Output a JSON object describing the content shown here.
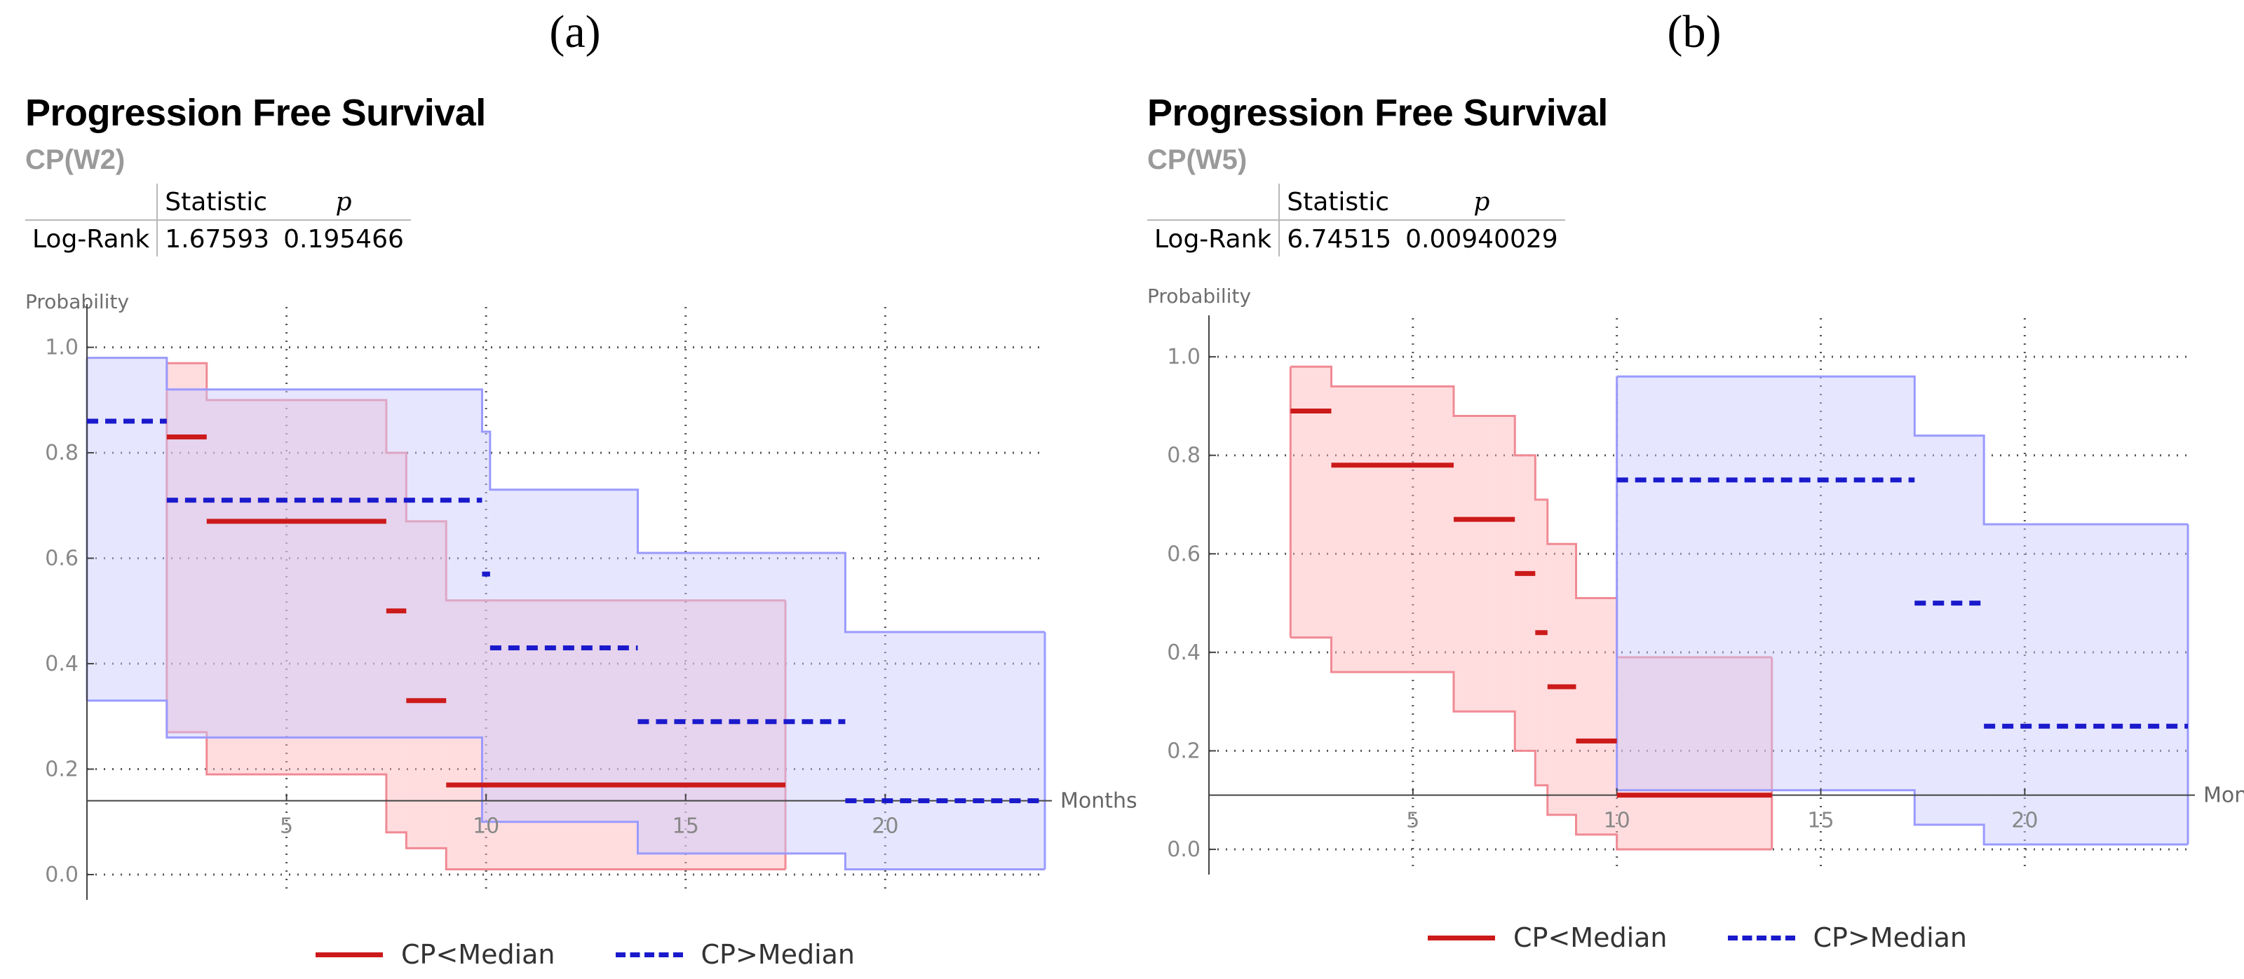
{
  "panels": [
    {
      "label": "(a)",
      "title": "Progression Free Survival",
      "subtitle": "CP(W2)",
      "stats": {
        "col_statistic": "Statistic",
        "col_p": "p",
        "row_name": "Log-Rank",
        "statistic": "1.67593",
        "p_value": "0.195466"
      }
    },
    {
      "label": "(b)",
      "title": "Progression Free Survival",
      "subtitle": "CP(W5)",
      "stats": {
        "col_statistic": "Statistic",
        "col_p": "p",
        "row_name": "Log-Rank",
        "statistic": "6.74515",
        "p_value": "0.00940029"
      }
    }
  ],
  "legend": {
    "red": "CP<Median",
    "blue": "CP>Median"
  },
  "colors": {
    "red": "#cc1a1a",
    "blue": "#1a1acc",
    "red_band": "#ffb3b8",
    "blue_band": "#c8c8ff"
  },
  "chart_data": [
    {
      "type": "line",
      "title": "Progression Free Survival",
      "subtitle": "CP(W2)",
      "xlabel": "Months",
      "ylabel": "Probability",
      "xlim": [
        0,
        24
      ],
      "ylim": [
        0,
        1.05
      ],
      "x_axis_crosses_y": 0.14,
      "x_ticks": [
        5,
        10,
        15,
        20
      ],
      "y_ticks": [
        0.0,
        0.2,
        0.4,
        0.6,
        0.8,
        1.0
      ],
      "y_tick_labels": [
        "0.0",
        "0.2",
        "0.4",
        "0.6",
        "0.8",
        "1.0"
      ],
      "x_tick_labels": [
        "5",
        "10",
        "15",
        "20"
      ],
      "grid": true,
      "legend_position": "bottom",
      "series": [
        {
          "name": "CP<Median",
          "color": "red",
          "dash": false,
          "steps": [
            [
              2.0,
              3.0,
              0.83
            ],
            [
              3.0,
              7.5,
              0.67
            ],
            [
              7.5,
              8.0,
              0.5
            ],
            [
              8.0,
              9.0,
              0.33
            ],
            [
              9.0,
              17.5,
              0.17
            ]
          ],
          "band": [
            [
              2.0,
              3.0,
              0.27,
              0.97
            ],
            [
              3.0,
              7.5,
              0.19,
              0.9
            ],
            [
              7.5,
              8.0,
              0.08,
              0.8
            ],
            [
              8.0,
              9.0,
              0.05,
              0.67
            ],
            [
              9.0,
              17.5,
              0.01,
              0.52
            ]
          ]
        },
        {
          "name": "CP>Median",
          "color": "blue",
          "dash": true,
          "steps": [
            [
              0.0,
              2.0,
              0.86
            ],
            [
              2.0,
              9.9,
              0.71
            ],
            [
              9.9,
              10.1,
              0.57
            ],
            [
              10.1,
              13.8,
              0.43
            ],
            [
              13.8,
              19.0,
              0.29
            ],
            [
              19.0,
              24.0,
              0.14
            ]
          ],
          "band": [
            [
              0.0,
              2.0,
              0.33,
              0.98
            ],
            [
              2.0,
              9.9,
              0.26,
              0.92
            ],
            [
              9.9,
              10.1,
              0.1,
              0.84
            ],
            [
              10.1,
              13.8,
              0.1,
              0.73
            ],
            [
              13.8,
              19.0,
              0.04,
              0.61
            ],
            [
              19.0,
              24.0,
              0.01,
              0.46
            ]
          ]
        }
      ]
    },
    {
      "type": "line",
      "title": "Progression Free Survival",
      "subtitle": "CP(W5)",
      "xlabel": "Months",
      "ylabel": "Probability",
      "xlim": [
        0,
        24
      ],
      "ylim": [
        0,
        1.05
      ],
      "x_axis_crosses_y": 0.11,
      "x_ticks": [
        5,
        10,
        15,
        20
      ],
      "y_ticks": [
        0.0,
        0.2,
        0.4,
        0.6,
        0.8,
        1.0
      ],
      "y_tick_labels": [
        "0.0",
        "0.2",
        "0.4",
        "0.6",
        "0.8",
        "1.0"
      ],
      "x_tick_labels": [
        "5",
        "10",
        "15",
        "20"
      ],
      "grid": true,
      "legend_position": "bottom",
      "series": [
        {
          "name": "CP<Median",
          "color": "red",
          "dash": false,
          "steps": [
            [
              2.0,
              3.0,
              0.89
            ],
            [
              3.0,
              6.0,
              0.78
            ],
            [
              6.0,
              7.5,
              0.67
            ],
            [
              7.5,
              8.0,
              0.56
            ],
            [
              8.0,
              8.3,
              0.44
            ],
            [
              8.3,
              9.0,
              0.33
            ],
            [
              9.0,
              10.0,
              0.22
            ],
            [
              10.0,
              13.8,
              0.11
            ]
          ],
          "band": [
            [
              2.0,
              3.0,
              0.43,
              0.98
            ],
            [
              3.0,
              6.0,
              0.36,
              0.94
            ],
            [
              6.0,
              7.0,
              0.28,
              0.88
            ],
            [
              7.0,
              7.5,
              0.28,
              0.88
            ],
            [
              7.5,
              8.0,
              0.2,
              0.8
            ],
            [
              8.0,
              8.3,
              0.13,
              0.71
            ],
            [
              8.3,
              9.0,
              0.07,
              0.62
            ],
            [
              9.0,
              10.0,
              0.03,
              0.51
            ],
            [
              10.0,
              13.8,
              0.0,
              0.39
            ]
          ]
        },
        {
          "name": "CP>Median",
          "color": "blue",
          "dash": true,
          "steps": [
            [
              10.0,
              17.3,
              0.75
            ],
            [
              17.3,
              19.0,
              0.5
            ],
            [
              19.0,
              24.0,
              0.25
            ]
          ],
          "band": [
            [
              10.0,
              17.3,
              0.12,
              0.96
            ],
            [
              17.3,
              19.0,
              0.05,
              0.84
            ],
            [
              19.0,
              24.0,
              0.01,
              0.66
            ]
          ]
        }
      ]
    }
  ]
}
